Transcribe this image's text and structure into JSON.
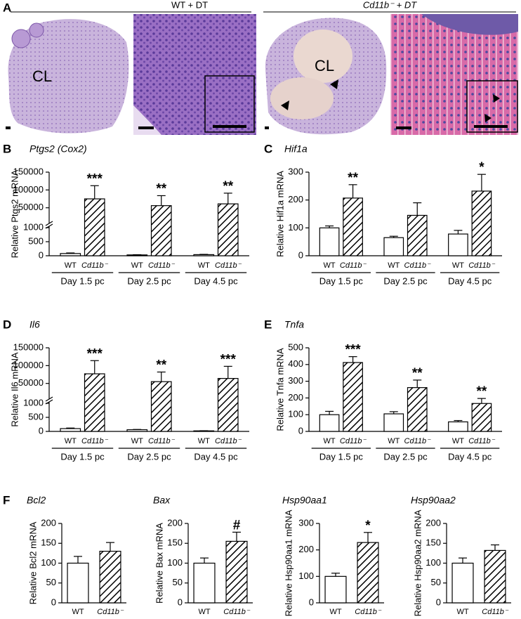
{
  "figure_a": {
    "panel_label": "A",
    "groups": [
      "WT + DT",
      "Cd11b⁻ + DT"
    ],
    "annotations": [
      "CL",
      "CL"
    ]
  },
  "chart_data": [
    {
      "type": "bar",
      "panel": "B",
      "title": "Ptgs2 (Cox2)",
      "ylabel": "Relative Ptgs2 mRNA",
      "categories": [
        "Day 1.5 pc",
        "Day 2.5 pc",
        "Day 4.5 pc"
      ],
      "series": [
        {
          "name": "WT",
          "color": "#ffffff",
          "values": [
            80,
            30,
            40
          ],
          "errors": [
            20,
            8,
            10
          ]
        },
        {
          "name": "Cd11b⁻",
          "color": "#ffffff",
          "hatch": true,
          "values": [
            75000,
            56000,
            61000
          ],
          "errors": [
            37000,
            28000,
            30000
          ]
        }
      ],
      "annotations": [
        "***",
        "**",
        "**"
      ],
      "ylim": [
        0,
        1000
      ],
      "yticks": [
        0,
        500,
        1000
      ],
      "ylim_upper": [
        10000,
        150000
      ],
      "yticks_upper": [
        50000,
        100000,
        150000
      ]
    },
    {
      "type": "bar",
      "panel": "C",
      "title": "Hif1a",
      "ylabel": "Relative Hif1a mRNA",
      "categories": [
        "Day 1.5 pc",
        "Day 2.5 pc",
        "Day 4.5 pc"
      ],
      "series": [
        {
          "name": "WT",
          "color": "#ffffff",
          "values": [
            100,
            65,
            78
          ],
          "errors": [
            7,
            5,
            13
          ]
        },
        {
          "name": "Cd11b⁻",
          "color": "#ffffff",
          "hatch": true,
          "values": [
            207,
            145,
            232
          ],
          "errors": [
            48,
            45,
            60
          ]
        }
      ],
      "annotations": [
        "**",
        null,
        "*"
      ],
      "ylim": [
        0,
        300
      ],
      "yticks": [
        0,
        100,
        200,
        300
      ]
    },
    {
      "type": "bar",
      "panel": "D",
      "title": "Il6",
      "ylabel": "Relative Il6 mRNA",
      "categories": [
        "Day 1.5 pc",
        "Day 2.5 pc",
        "Day 4.5 pc"
      ],
      "series": [
        {
          "name": "WT",
          "color": "#ffffff",
          "values": [
            100,
            60,
            20
          ],
          "errors": [
            20,
            10,
            5
          ]
        },
        {
          "name": "Cd11b⁻",
          "color": "#ffffff",
          "hatch": true,
          "values": [
            77000,
            55000,
            64000
          ],
          "errors": [
            37000,
            27000,
            34000
          ]
        }
      ],
      "annotations": [
        "***",
        "**",
        "***"
      ],
      "ylim": [
        0,
        1000
      ],
      "yticks": [
        0,
        500,
        1000
      ],
      "ylim_upper": [
        10000,
        150000
      ],
      "yticks_upper": [
        50000,
        100000,
        150000
      ]
    },
    {
      "type": "bar",
      "panel": "E",
      "title": "Tnfa",
      "ylabel": "Relative Tnfa mRNA",
      "categories": [
        "Day 1.5 pc",
        "Day 2.5 pc",
        "Day 4.5 pc"
      ],
      "series": [
        {
          "name": "WT",
          "color": "#ffffff",
          "values": [
            100,
            105,
            57
          ],
          "errors": [
            20,
            13,
            8
          ]
        },
        {
          "name": "Cd11b⁻",
          "color": "#ffffff",
          "hatch": true,
          "values": [
            412,
            262,
            167
          ],
          "errors": [
            35,
            45,
            30
          ]
        }
      ],
      "annotations": [
        "***",
        "**",
        "**"
      ],
      "ylim": [
        0,
        500
      ],
      "yticks": [
        0,
        100,
        200,
        300,
        400,
        500
      ]
    },
    {
      "type": "bar",
      "panel": "F",
      "title": "Bcl2",
      "ylabel": "Relative Bcl2 mRNA",
      "categories": [
        "WT",
        "Cd11b⁻"
      ],
      "values": [
        100,
        130
      ],
      "errors": [
        17,
        22
      ],
      "hatch": [
        false,
        true
      ],
      "annotations": [
        null,
        null
      ],
      "ylim": [
        0,
        200
      ],
      "yticks": [
        0,
        50,
        100,
        150,
        200
      ]
    },
    {
      "type": "bar",
      "title": "Bax",
      "ylabel": "Relative Bax mRNA",
      "categories": [
        "WT",
        "Cd11b⁻"
      ],
      "values": [
        100,
        155
      ],
      "errors": [
        13,
        23
      ],
      "hatch": [
        false,
        true
      ],
      "annotations": [
        null,
        "#"
      ],
      "ylim": [
        0,
        200
      ],
      "yticks": [
        0,
        50,
        100,
        150,
        200
      ]
    },
    {
      "type": "bar",
      "title": "Hsp90aa1",
      "ylabel": "Relative Hsp90aa1 mRNA",
      "categories": [
        "WT",
        "Cd11b⁻"
      ],
      "values": [
        100,
        228
      ],
      "errors": [
        12,
        38
      ],
      "hatch": [
        false,
        true
      ],
      "annotations": [
        null,
        "*"
      ],
      "ylim": [
        0,
        300
      ],
      "yticks": [
        0,
        100,
        200,
        300
      ]
    },
    {
      "type": "bar",
      "title": "Hsp90aa2",
      "ylabel": "Relative Hsp90aa2 mRNA",
      "categories": [
        "WT",
        "Cd11b⁻"
      ],
      "values": [
        100,
        132
      ],
      "errors": [
        13,
        14
      ],
      "hatch": [
        false,
        true
      ],
      "annotations": [
        null,
        null
      ],
      "ylim": [
        0,
        200
      ],
      "yticks": [
        0,
        50,
        100,
        150,
        200
      ]
    }
  ]
}
